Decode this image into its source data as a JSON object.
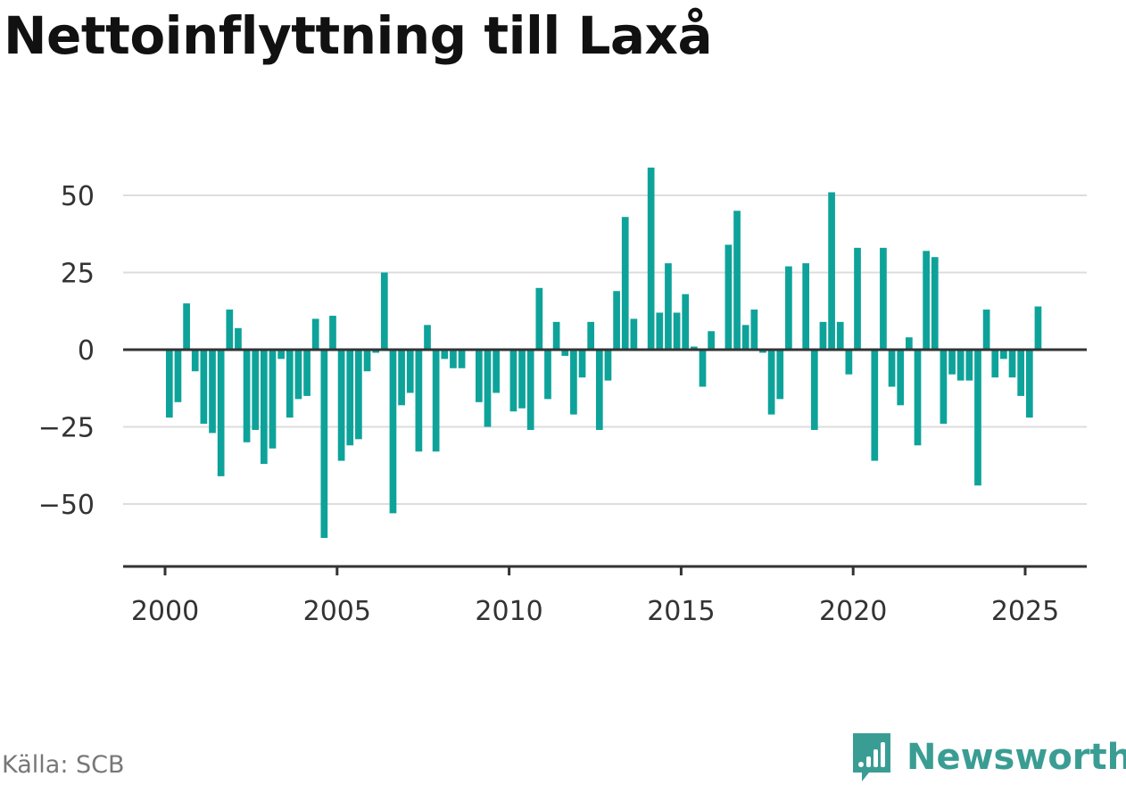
{
  "chart_data": {
    "type": "bar",
    "title": "Nettoinflyttning till Laxå",
    "xlabel": "",
    "ylabel": "",
    "source": "Källa: SCB",
    "xlim": [
      1999.25,
      2027.25
    ],
    "ylim": [
      -70,
      62
    ],
    "yticks": [
      -50,
      -25,
      0,
      25,
      50
    ],
    "ytick_labels": [
      "−50",
      "−25",
      "0",
      "25",
      "50"
    ],
    "xticks": [
      2000,
      2005,
      2010,
      2015,
      2020,
      2025
    ],
    "xtick_labels": [
      "2000",
      "2005",
      "2010",
      "2015",
      "2020",
      "2025"
    ],
    "grid": true,
    "bar_color": "#0ea39a",
    "start": 2000.125,
    "step": 0.25,
    "values": [
      -22,
      -17,
      15,
      -7,
      -24,
      -27,
      -41,
      13,
      7,
      -30,
      -26,
      -37,
      -32,
      -3,
      -22,
      -16,
      -15,
      10,
      -61,
      11,
      -36,
      -31,
      -29,
      -7,
      -1,
      25,
      -53,
      -18,
      -14,
      -33,
      8,
      -33,
      -3,
      -6,
      -6,
      0,
      -17,
      -25,
      -14,
      0,
      -20,
      -19,
      -26,
      20,
      -16,
      9,
      -2,
      -21,
      -9,
      9,
      -26,
      -10,
      19,
      43,
      10,
      0,
      59,
      12,
      28,
      12,
      18,
      1,
      -12,
      6,
      0,
      34,
      45,
      8,
      13,
      -1,
      -21,
      -16,
      27,
      0,
      28,
      -26,
      9,
      51,
      9,
      -8,
      33,
      0,
      -36,
      33,
      -12,
      -18,
      4,
      -31,
      32,
      30,
      -24,
      -8,
      -10,
      -10,
      -44,
      13,
      -9,
      -3,
      -9,
      -15,
      -22,
      14
    ]
  },
  "footer": {
    "source_label": "Källa: SCB",
    "brand_name": "Newsworthy",
    "brand_color": "#3a9d94",
    "brand_icon": "newsworthy-logo-icon"
  }
}
